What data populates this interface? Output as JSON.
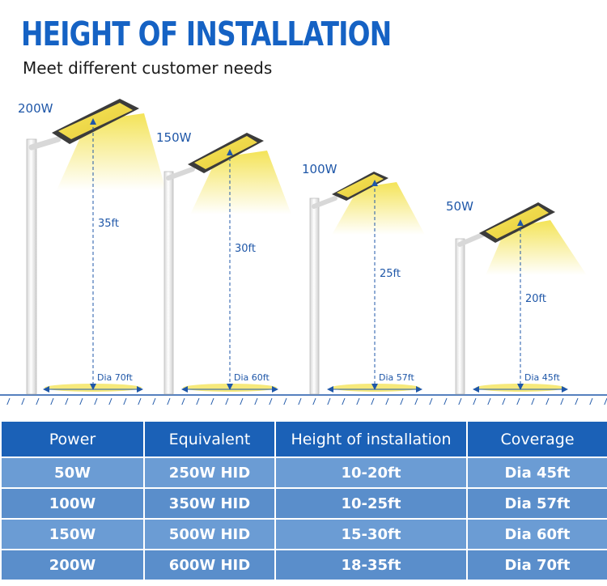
{
  "title": "HEIGHT OF INSTALLATION",
  "subtitle": "Meet different customer needs",
  "poles": [
    {
      "power": "200W",
      "height": "35ft",
      "coverage": "Dia 70ft"
    },
    {
      "power": "150W",
      "height": "30ft",
      "coverage": "Dia 60ft"
    },
    {
      "power": "100W",
      "height": "25ft",
      "coverage": "Dia 57ft"
    },
    {
      "power": "50W",
      "height": "20ft",
      "coverage": "Dia 45ft"
    }
  ],
  "table": {
    "headers": [
      "Power",
      "Equivalent",
      "Height of installation",
      "Coverage"
    ],
    "rows": [
      [
        "50W",
        "250W HID",
        "10-20ft",
        "Dia 45ft"
      ],
      [
        "100W",
        "350W HID",
        "10-25ft",
        "Dia 57ft"
      ],
      [
        "150W",
        "500W HID",
        "15-30ft",
        "Dia 60ft"
      ],
      [
        "200W",
        "600W HID",
        "18-35ft",
        "Dia 70ft"
      ]
    ]
  },
  "colors": {
    "accent": "#1562c4",
    "header_bg": "#1b61b7",
    "row_bg": "#6b9cd4",
    "light": "#f2e25a"
  }
}
